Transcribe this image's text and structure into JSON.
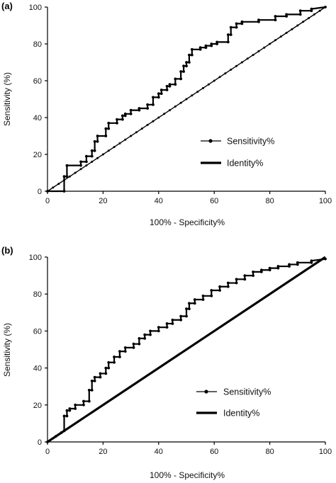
{
  "chart_data": [
    {
      "type": "line",
      "panel_label": "(a)",
      "xlabel": "100% - Specificity%",
      "ylabel": "Sensitivity (%)",
      "xlim": [
        0,
        100
      ],
      "ylim": [
        0,
        100
      ],
      "xticks": [
        0,
        20,
        40,
        60,
        80,
        100
      ],
      "yticks": [
        0,
        20,
        40,
        60,
        80,
        100
      ],
      "legend_position": "lower-right",
      "series": [
        {
          "name": "Sensitivity%",
          "points": [
            [
              0,
              0
            ],
            [
              6,
              0
            ],
            [
              6,
              8
            ],
            [
              7,
              8
            ],
            [
              7,
              14
            ],
            [
              12,
              14
            ],
            [
              12,
              16
            ],
            [
              14,
              16
            ],
            [
              14,
              19
            ],
            [
              16,
              19
            ],
            [
              16,
              22
            ],
            [
              17,
              22
            ],
            [
              17,
              27
            ],
            [
              18,
              27
            ],
            [
              18,
              30
            ],
            [
              21,
              30
            ],
            [
              21,
              34
            ],
            [
              22,
              34
            ],
            [
              22,
              37
            ],
            [
              25,
              37
            ],
            [
              25,
              39
            ],
            [
              27,
              39
            ],
            [
              27,
              41
            ],
            [
              28,
              41
            ],
            [
              28,
              42
            ],
            [
              30,
              42
            ],
            [
              30,
              44
            ],
            [
              33,
              44
            ],
            [
              33,
              45
            ],
            [
              36,
              45
            ],
            [
              36,
              47
            ],
            [
              38,
              47
            ],
            [
              38,
              51
            ],
            [
              40,
              51
            ],
            [
              40,
              53
            ],
            [
              41,
              53
            ],
            [
              41,
              55
            ],
            [
              43,
              55
            ],
            [
              43,
              57
            ],
            [
              44,
              57
            ],
            [
              44,
              58
            ],
            [
              46,
              58
            ],
            [
              46,
              61
            ],
            [
              48,
              61
            ],
            [
              48,
              65
            ],
            [
              49,
              65
            ],
            [
              49,
              68
            ],
            [
              50,
              68
            ],
            [
              50,
              70
            ],
            [
              51,
              70
            ],
            [
              51,
              74
            ],
            [
              52,
              74
            ],
            [
              52,
              77
            ],
            [
              55,
              77
            ],
            [
              55,
              78
            ],
            [
              57,
              78
            ],
            [
              57,
              79
            ],
            [
              59,
              79
            ],
            [
              59,
              80
            ],
            [
              61,
              80
            ],
            [
              61,
              81
            ],
            [
              65,
              81
            ],
            [
              65,
              85
            ],
            [
              66,
              85
            ],
            [
              66,
              89
            ],
            [
              68,
              89
            ],
            [
              68,
              91
            ],
            [
              70,
              91
            ],
            [
              70,
              92
            ],
            [
              76,
              92
            ],
            [
              76,
              93
            ],
            [
              82,
              93
            ],
            [
              82,
              95
            ],
            [
              86,
              95
            ],
            [
              86,
              96
            ],
            [
              91,
              96
            ],
            [
              91,
              98
            ],
            [
              95,
              98
            ],
            [
              95,
              99
            ],
            [
              100,
              100
            ]
          ]
        },
        {
          "name": "Identity%",
          "points": [
            [
              0,
              0
            ],
            [
              100,
              100
            ]
          ]
        }
      ]
    },
    {
      "type": "line",
      "panel_label": "(b)",
      "xlabel": "100% - Specificity%",
      "ylabel": "Sensitivity (%)",
      "xlim": [
        0,
        100
      ],
      "ylim": [
        0,
        100
      ],
      "xticks": [
        0,
        20,
        40,
        60,
        80,
        100
      ],
      "yticks": [
        0,
        20,
        40,
        60,
        80,
        100
      ],
      "legend_position": "lower-right",
      "series": [
        {
          "name": "Sensitivity%",
          "points": [
            [
              0,
              0
            ],
            [
              3,
              3
            ],
            [
              5,
              5
            ],
            [
              6,
              6
            ],
            [
              6,
              14
            ],
            [
              7,
              14
            ],
            [
              7,
              17
            ],
            [
              8,
              17
            ],
            [
              8,
              18
            ],
            [
              10,
              18
            ],
            [
              10,
              20
            ],
            [
              13,
              20
            ],
            [
              13,
              22
            ],
            [
              15,
              22
            ],
            [
              15,
              28
            ],
            [
              16,
              28
            ],
            [
              16,
              33
            ],
            [
              17,
              33
            ],
            [
              17,
              35
            ],
            [
              19,
              35
            ],
            [
              19,
              37
            ],
            [
              21,
              37
            ],
            [
              21,
              40
            ],
            [
              22,
              40
            ],
            [
              22,
              43
            ],
            [
              24,
              43
            ],
            [
              24,
              46
            ],
            [
              26,
              46
            ],
            [
              26,
              49
            ],
            [
              28,
              49
            ],
            [
              28,
              51
            ],
            [
              31,
              51
            ],
            [
              31,
              53
            ],
            [
              33,
              53
            ],
            [
              33,
              56
            ],
            [
              35,
              56
            ],
            [
              35,
              58
            ],
            [
              37,
              58
            ],
            [
              37,
              60
            ],
            [
              40,
              60
            ],
            [
              40,
              62
            ],
            [
              43,
              62
            ],
            [
              43,
              64
            ],
            [
              45,
              64
            ],
            [
              45,
              66
            ],
            [
              48,
              66
            ],
            [
              48,
              68
            ],
            [
              50,
              68
            ],
            [
              50,
              72
            ],
            [
              51,
              72
            ],
            [
              51,
              75
            ],
            [
              53,
              75
            ],
            [
              53,
              77
            ],
            [
              56,
              77
            ],
            [
              56,
              79
            ],
            [
              59,
              79
            ],
            [
              59,
              82
            ],
            [
              62,
              82
            ],
            [
              62,
              84
            ],
            [
              65,
              84
            ],
            [
              65,
              86
            ],
            [
              68,
              86
            ],
            [
              68,
              88
            ],
            [
              71,
              88
            ],
            [
              71,
              90
            ],
            [
              74,
              90
            ],
            [
              74,
              92
            ],
            [
              77,
              92
            ],
            [
              77,
              93
            ],
            [
              80,
              93
            ],
            [
              80,
              94
            ],
            [
              83,
              94
            ],
            [
              83,
              95
            ],
            [
              87,
              95
            ],
            [
              87,
              96
            ],
            [
              90,
              96
            ],
            [
              90,
              97
            ],
            [
              95,
              97
            ],
            [
              95,
              98
            ],
            [
              100,
              99
            ]
          ]
        },
        {
          "name": "Identity%",
          "points": [
            [
              0,
              0
            ],
            [
              100,
              100
            ]
          ]
        }
      ]
    }
  ]
}
